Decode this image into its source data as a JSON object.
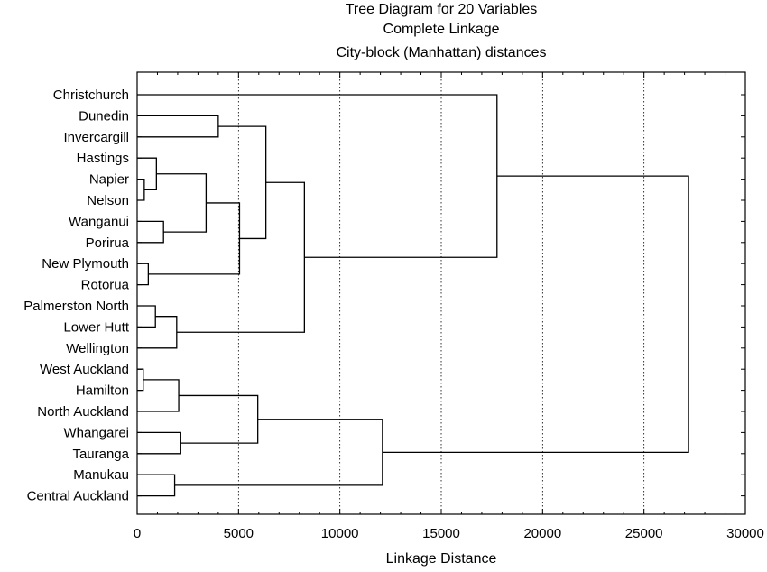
{
  "chart_data": {
    "type": "dendrogram",
    "title": "Tree Diagram for 20  Variables",
    "subtitle": "Complete Linkage",
    "subtitle2": "City-block (Manhattan) distances",
    "xlabel": "Linkage Distance",
    "xlim": [
      0,
      30000
    ],
    "xticks": [
      0,
      5000,
      10000,
      15000,
      20000,
      25000,
      30000
    ],
    "grid": "vertical dotted at major ticks",
    "leaves": [
      "Christchurch",
      "Dunedin",
      "Invercargill",
      "Hastings",
      "Napier",
      "Nelson",
      "Wanganui",
      "Porirua",
      "New Plymouth",
      "Rotorua",
      "Palmerston North",
      "Lower Hutt",
      "Wellington",
      "West Auckland",
      "Hamilton",
      "North Auckland",
      "Whangarei",
      "Tauranga",
      "Manukau",
      "Central Auckland"
    ],
    "merges": [
      {
        "a": "L4",
        "b": "L5",
        "height": 350
      },
      {
        "a": "L13",
        "b": "L14",
        "height": 300
      },
      {
        "a": "L8",
        "b": "L9",
        "height": 550
      },
      {
        "a": "L3",
        "b": "M0",
        "height": 950
      },
      {
        "a": "L10",
        "b": "L11",
        "height": 900
      },
      {
        "a": "L6",
        "b": "L7",
        "height": 1300
      },
      {
        "a": "L18",
        "b": "L19",
        "height": 1850
      },
      {
        "a": "M4",
        "b": "L12",
        "height": 1950
      },
      {
        "a": "M1",
        "b": "L15",
        "height": 2050
      },
      {
        "a": "L16",
        "b": "L17",
        "height": 2150
      },
      {
        "a": "M3",
        "b": "M5",
        "height": 3400
      },
      {
        "a": "L1",
        "b": "L2",
        "height": 4000
      },
      {
        "a": "M10",
        "b": "M2",
        "height": 5050
      },
      {
        "a": "M8",
        "b": "M9",
        "height": 5950
      },
      {
        "a": "M11",
        "b": "M12",
        "height": 6350
      },
      {
        "a": "M14",
        "b": "M7",
        "height": 8250
      },
      {
        "a": "M13",
        "b": "M6",
        "height": 12100
      },
      {
        "a": "L0",
        "b": "M15",
        "height": 17750
      },
      {
        "a": "M17",
        "b": "M16",
        "height": 27200
      }
    ]
  }
}
